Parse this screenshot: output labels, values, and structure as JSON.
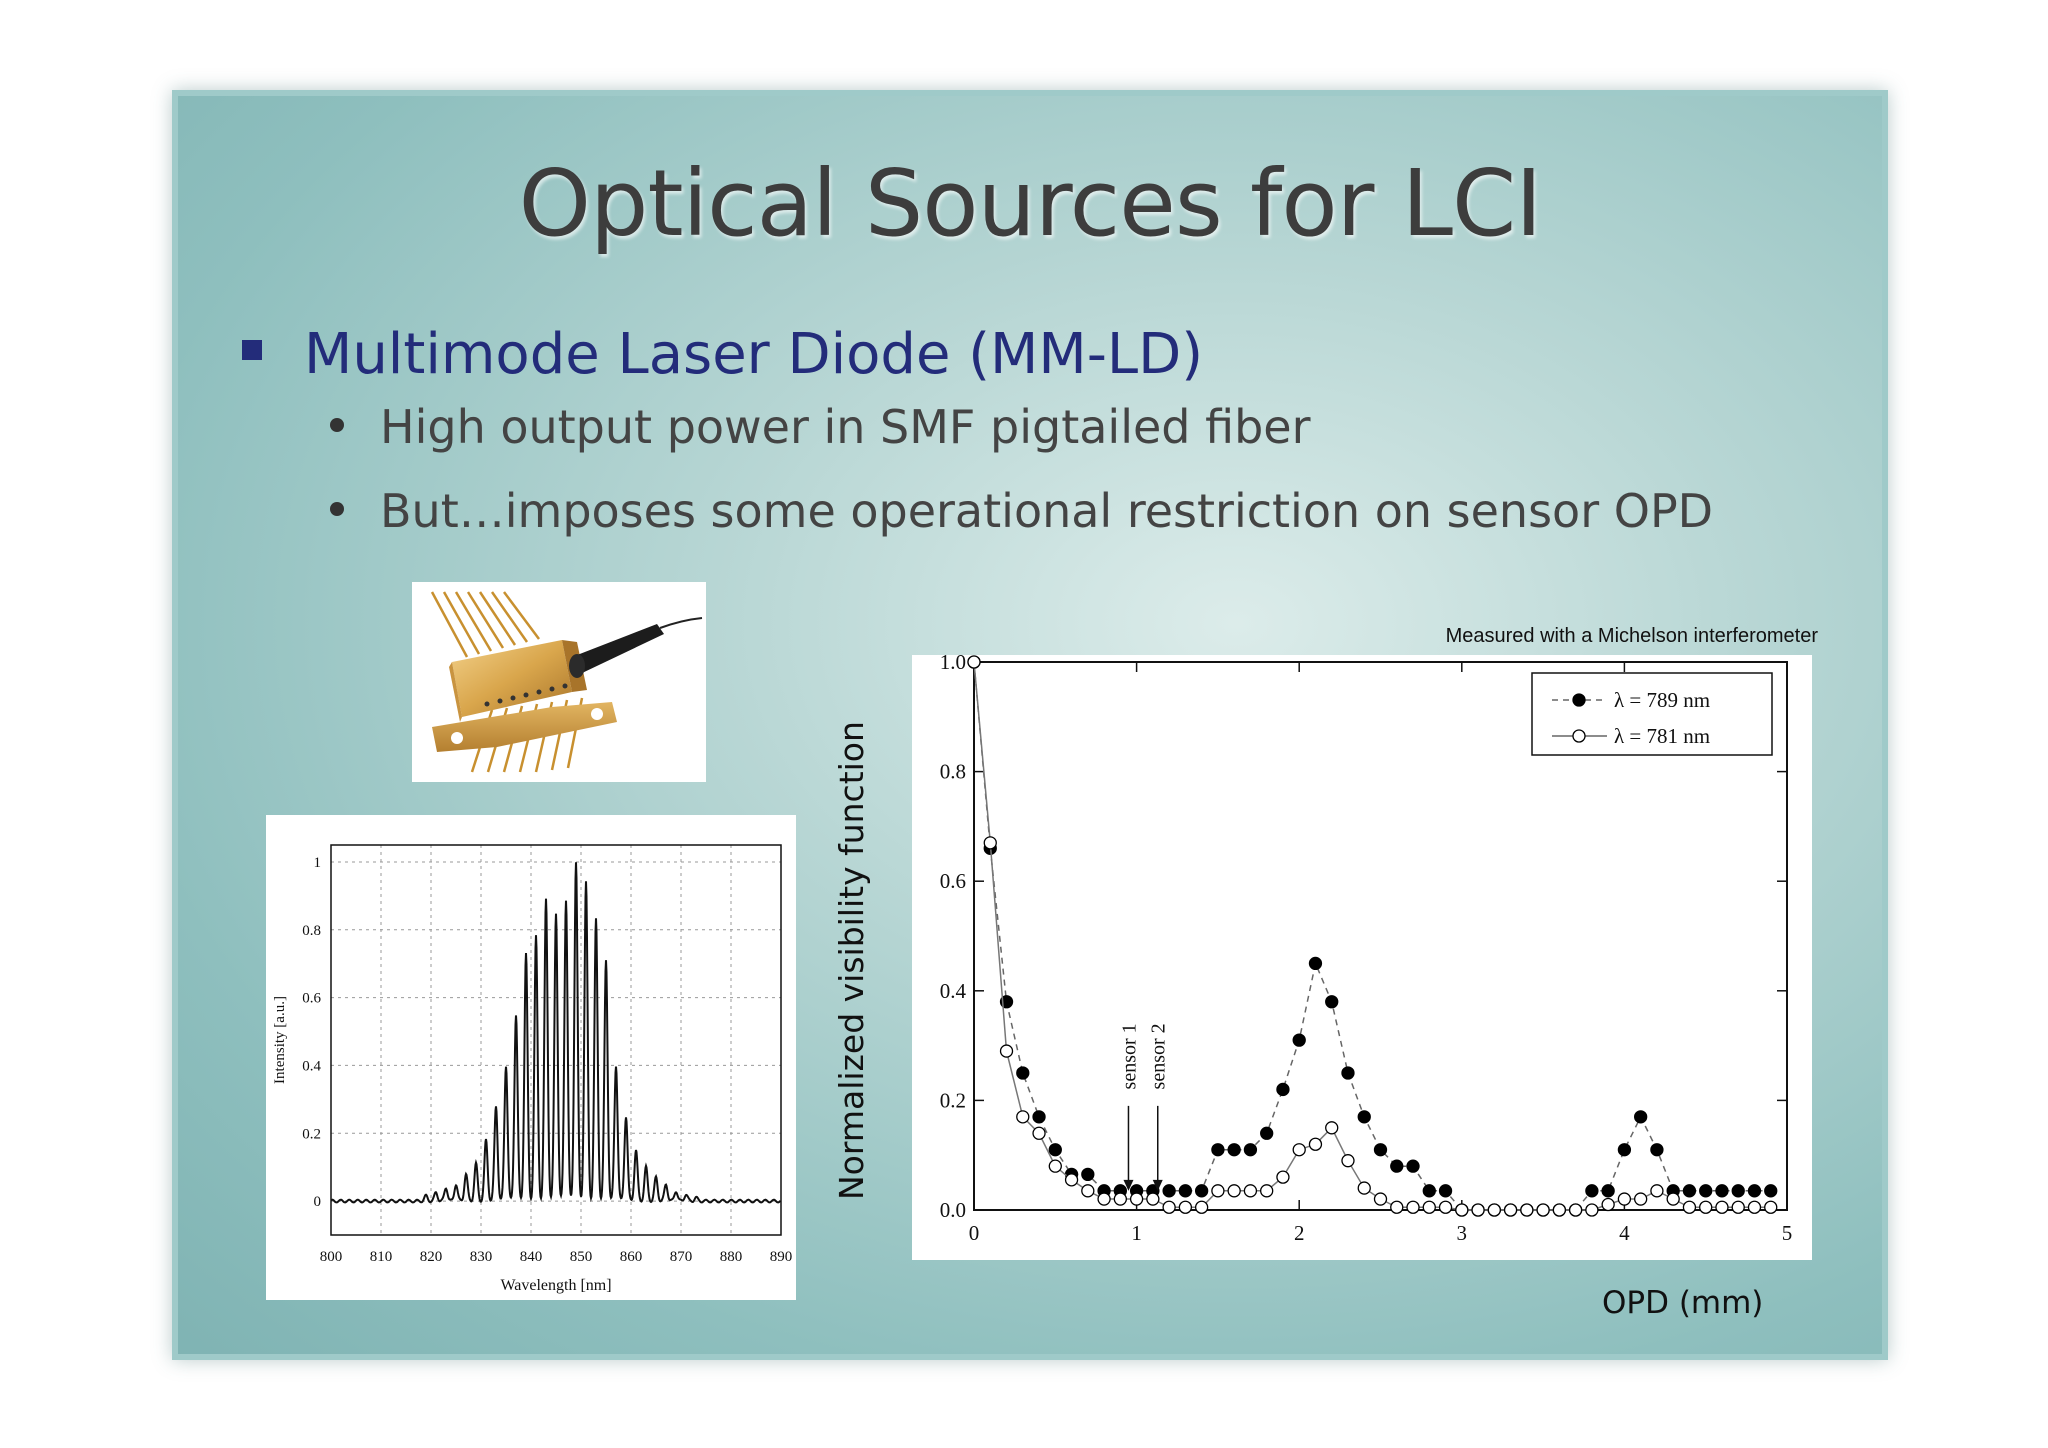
{
  "slide": {
    "title": "Optical Sources for LCI",
    "bullet_main": "Multimode Laser Diode (MM-LD)",
    "sub_bullets": [
      "High output power in SMF pigtailed fiber",
      "But…imposes some operational restriction on sensor OPD"
    ],
    "photo_icon": "laser-diode-module-photo"
  },
  "chart_data": [
    {
      "type": "line",
      "xlabel": "Wavelength [nm]",
      "ylabel": "Intensity [a.u.]",
      "xlim": [
        800,
        890
      ],
      "ylim": [
        -0.1,
        1.05
      ],
      "xticks": [
        "800",
        "810",
        "820",
        "830",
        "840",
        "850",
        "860",
        "870",
        "880",
        "890"
      ],
      "yticks": [
        "0",
        "0.2",
        "0.4",
        "0.6",
        "0.8",
        "1"
      ],
      "grid": true,
      "peaks": [
        {
          "x": 819,
          "y": 0.015
        },
        {
          "x": 821,
          "y": 0.025
        },
        {
          "x": 823,
          "y": 0.04
        },
        {
          "x": 825,
          "y": 0.05
        },
        {
          "x": 827,
          "y": 0.08
        },
        {
          "x": 829,
          "y": 0.11
        },
        {
          "x": 831,
          "y": 0.18
        },
        {
          "x": 833,
          "y": 0.28
        },
        {
          "x": 835,
          "y": 0.4
        },
        {
          "x": 837,
          "y": 0.55
        },
        {
          "x": 839,
          "y": 0.73
        },
        {
          "x": 841,
          "y": 0.78
        },
        {
          "x": 843,
          "y": 0.89
        },
        {
          "x": 845,
          "y": 0.85
        },
        {
          "x": 847,
          "y": 0.89
        },
        {
          "x": 849,
          "y": 1.0
        },
        {
          "x": 851,
          "y": 0.94
        },
        {
          "x": 853,
          "y": 0.83
        },
        {
          "x": 855,
          "y": 0.71
        },
        {
          "x": 857,
          "y": 0.4
        },
        {
          "x": 859,
          "y": 0.25
        },
        {
          "x": 861,
          "y": 0.15
        },
        {
          "x": 863,
          "y": 0.1
        },
        {
          "x": 865,
          "y": 0.07
        },
        {
          "x": 867,
          "y": 0.05
        },
        {
          "x": 869,
          "y": 0.03
        },
        {
          "x": 871,
          "y": 0.02
        },
        {
          "x": 873,
          "y": 0.01
        }
      ]
    },
    {
      "type": "scatter",
      "title": "Measured with a Michelson interferometer",
      "xlabel": "OPD (mm)",
      "ylabel": "Normalized visibility function",
      "xlim": [
        0,
        5
      ],
      "ylim": [
        0,
        1.0
      ],
      "xticks": [
        "0",
        "1",
        "2",
        "3",
        "4",
        "5"
      ],
      "yticks": [
        "0.0",
        "0.2",
        "0.4",
        "0.6",
        "0.8",
        "1.0"
      ],
      "legend_position": "top-right",
      "annotations": [
        "sensor 1",
        "sensor 2"
      ],
      "annotation_x": [
        0.95,
        1.13
      ],
      "series": [
        {
          "name": "λ = 789 nm",
          "marker": "filled",
          "line": "dashed",
          "points": [
            [
              0.0,
              1.0
            ],
            [
              0.1,
              0.66
            ],
            [
              0.2,
              0.38
            ],
            [
              0.3,
              0.25
            ],
            [
              0.4,
              0.17
            ],
            [
              0.5,
              0.11
            ],
            [
              0.6,
              0.065
            ],
            [
              0.7,
              0.065
            ],
            [
              0.8,
              0.035
            ],
            [
              0.9,
              0.035
            ],
            [
              1.0,
              0.035
            ],
            [
              1.1,
              0.035
            ],
            [
              1.2,
              0.035
            ],
            [
              1.3,
              0.035
            ],
            [
              1.4,
              0.035
            ],
            [
              1.5,
              0.11
            ],
            [
              1.6,
              0.11
            ],
            [
              1.7,
              0.11
            ],
            [
              1.8,
              0.14
            ],
            [
              1.9,
              0.22
            ],
            [
              2.0,
              0.31
            ],
            [
              2.1,
              0.45
            ],
            [
              2.2,
              0.38
            ],
            [
              2.3,
              0.25
            ],
            [
              2.4,
              0.17
            ],
            [
              2.5,
              0.11
            ],
            [
              2.6,
              0.08
            ],
            [
              2.7,
              0.08
            ],
            [
              2.8,
              0.035
            ],
            [
              2.9,
              0.035
            ],
            [
              3.0,
              0.0
            ],
            [
              3.1,
              0.0
            ],
            [
              3.2,
              0.0
            ],
            [
              3.3,
              0.0
            ],
            [
              3.4,
              0.0
            ],
            [
              3.5,
              0.0
            ],
            [
              3.6,
              0.0
            ],
            [
              3.7,
              0.0
            ],
            [
              3.8,
              0.035
            ],
            [
              3.9,
              0.035
            ],
            [
              4.0,
              0.11
            ],
            [
              4.1,
              0.17
            ],
            [
              4.2,
              0.11
            ],
            [
              4.3,
              0.035
            ],
            [
              4.4,
              0.035
            ],
            [
              4.5,
              0.035
            ],
            [
              4.6,
              0.035
            ],
            [
              4.7,
              0.035
            ],
            [
              4.8,
              0.035
            ],
            [
              4.9,
              0.035
            ]
          ]
        },
        {
          "name": "λ = 781 nm",
          "marker": "open",
          "line": "solid",
          "points": [
            [
              0.0,
              1.0
            ],
            [
              0.1,
              0.67
            ],
            [
              0.2,
              0.29
            ],
            [
              0.3,
              0.17
            ],
            [
              0.4,
              0.14
            ],
            [
              0.5,
              0.08
            ],
            [
              0.6,
              0.055
            ],
            [
              0.7,
              0.035
            ],
            [
              0.8,
              0.02
            ],
            [
              0.9,
              0.02
            ],
            [
              1.0,
              0.02
            ],
            [
              1.1,
              0.02
            ],
            [
              1.2,
              0.005
            ],
            [
              1.3,
              0.005
            ],
            [
              1.4,
              0.005
            ],
            [
              1.5,
              0.035
            ],
            [
              1.6,
              0.035
            ],
            [
              1.7,
              0.035
            ],
            [
              1.8,
              0.035
            ],
            [
              1.9,
              0.06
            ],
            [
              2.0,
              0.11
            ],
            [
              2.1,
              0.12
            ],
            [
              2.2,
              0.15
            ],
            [
              2.3,
              0.09
            ],
            [
              2.4,
              0.04
            ],
            [
              2.5,
              0.02
            ],
            [
              2.6,
              0.005
            ],
            [
              2.7,
              0.005
            ],
            [
              2.8,
              0.005
            ],
            [
              2.9,
              0.005
            ],
            [
              3.0,
              0.0
            ],
            [
              3.1,
              0.0
            ],
            [
              3.2,
              0.0
            ],
            [
              3.3,
              0.0
            ],
            [
              3.4,
              0.0
            ],
            [
              3.5,
              0.0
            ],
            [
              3.6,
              0.0
            ],
            [
              3.7,
              0.0
            ],
            [
              3.8,
              0.0
            ],
            [
              3.9,
              0.01
            ],
            [
              4.0,
              0.02
            ],
            [
              4.1,
              0.02
            ],
            [
              4.2,
              0.035
            ],
            [
              4.3,
              0.02
            ],
            [
              4.4,
              0.005
            ],
            [
              4.5,
              0.005
            ],
            [
              4.6,
              0.005
            ],
            [
              4.7,
              0.005
            ],
            [
              4.8,
              0.005
            ],
            [
              4.9,
              0.005
            ]
          ]
        }
      ]
    }
  ]
}
